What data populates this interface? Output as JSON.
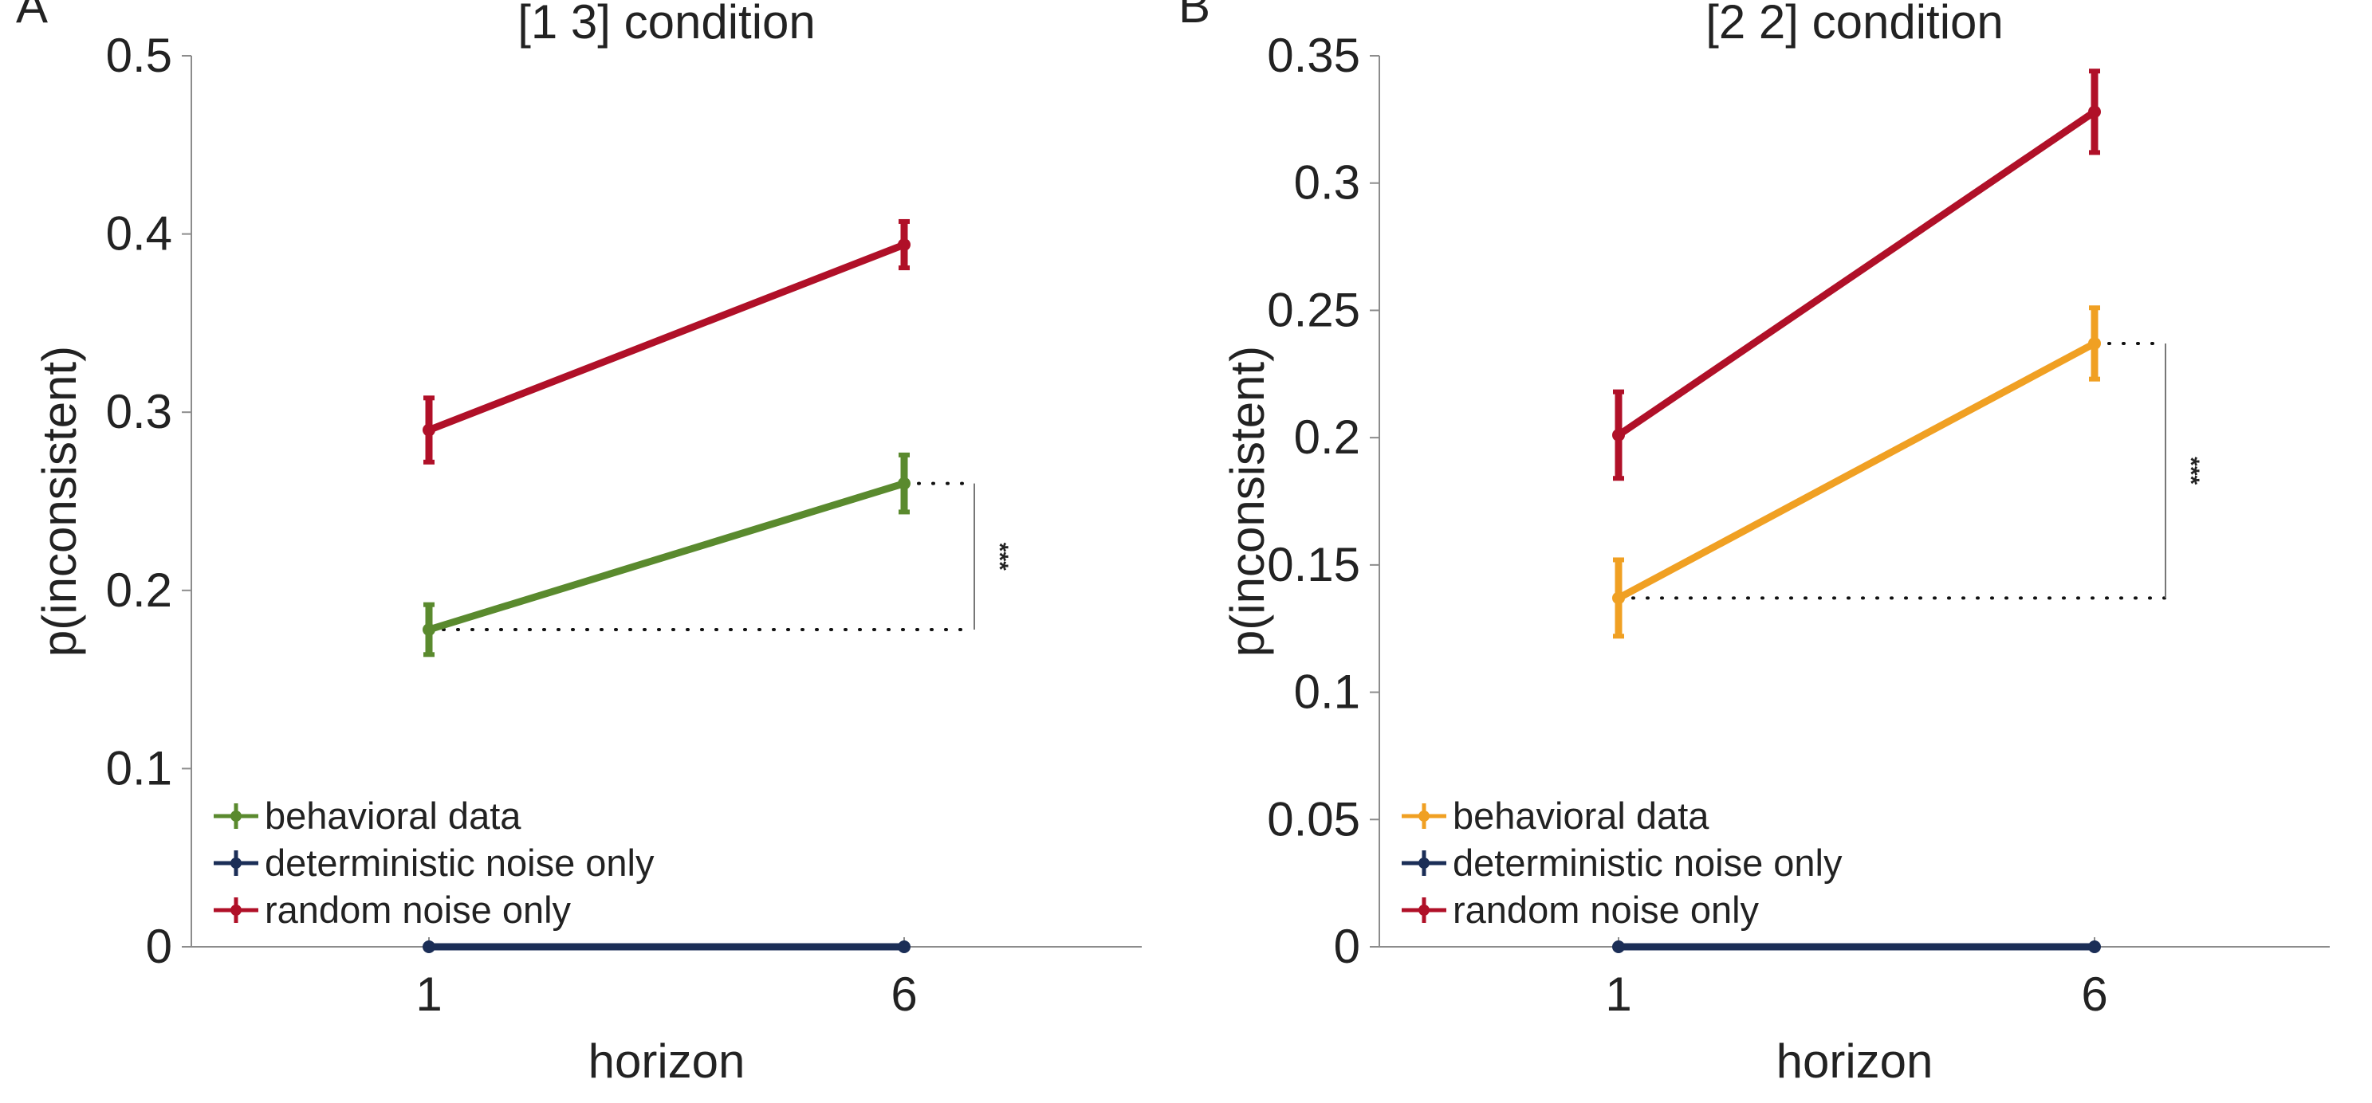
{
  "panels": [
    {
      "letter": "A",
      "title": "[1 3] condition",
      "xlabel": "horizon",
      "ylabel": "p(inconsistent)",
      "sig": "***",
      "legend": [
        "behavioral data",
        "deterministic noise only",
        "random noise only"
      ]
    },
    {
      "letter": "B",
      "title": "[2 2] condition",
      "xlabel": "horizon",
      "ylabel": "p(inconsistent)",
      "sig": "***",
      "legend": [
        "behavioral data",
        "deterministic noise only",
        "random noise only"
      ]
    }
  ],
  "chart_data": [
    {
      "type": "line",
      "title": "[1 3] condition",
      "xlabel": "horizon",
      "ylabel": "p(inconsistent)",
      "categories": [
        "1",
        "6"
      ],
      "ylim": [
        0,
        0.5
      ],
      "yticks": [
        "0",
        "0.1",
        "0.2",
        "0.3",
        "0.4",
        "0.5"
      ],
      "grid": false,
      "legend_position": "bottom-left",
      "series": [
        {
          "name": "behavioral data",
          "values": [
            0.178,
            0.26
          ],
          "errors": [
            0.014,
            0.016
          ],
          "color": "#5a8a2e"
        },
        {
          "name": "deterministic noise only",
          "values": [
            0,
            0
          ],
          "errors": [
            0,
            0
          ],
          "color": "#1b2e57"
        },
        {
          "name": "random noise only",
          "values": [
            0.29,
            0.394
          ],
          "errors": [
            0.018,
            0.013
          ],
          "color": "#b01028"
        }
      ],
      "annotation": "***"
    },
    {
      "type": "line",
      "title": "[2 2] condition",
      "xlabel": "horizon",
      "ylabel": "p(inconsistent)",
      "categories": [
        "1",
        "6"
      ],
      "ylim": [
        0,
        0.35
      ],
      "yticks": [
        "0",
        "0.05",
        "0.1",
        "0.15",
        "0.2",
        "0.25",
        "0.3",
        "0.35"
      ],
      "grid": false,
      "legend_position": "bottom-left",
      "series": [
        {
          "name": "behavioral data",
          "values": [
            0.137,
            0.237
          ],
          "errors": [
            0.015,
            0.014
          ],
          "color": "#f0a023"
        },
        {
          "name": "deterministic noise only",
          "values": [
            0,
            0
          ],
          "errors": [
            0,
            0
          ],
          "color": "#1b2e57"
        },
        {
          "name": "random noise only",
          "values": [
            0.201,
            0.328
          ],
          "errors": [
            0.017,
            0.016
          ],
          "color": "#b01028"
        }
      ],
      "annotation": "***"
    }
  ]
}
